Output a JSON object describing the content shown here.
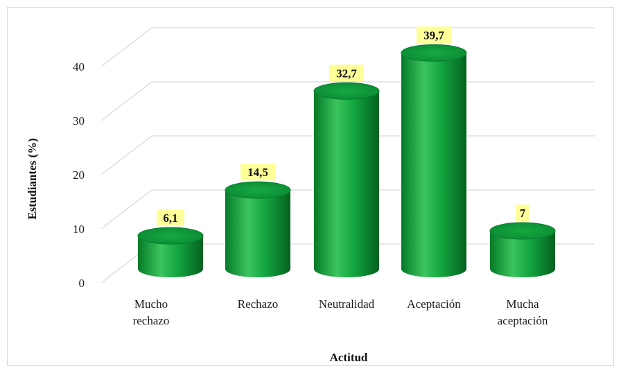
{
  "chart_data": {
    "type": "bar",
    "style": "3d-cylinder",
    "categories": [
      [
        "Mucho",
        "rechazo"
      ],
      [
        "Rechazo"
      ],
      [
        "Neutralidad"
      ],
      [
        "Aceptación"
      ],
      [
        "Mucha",
        "aceptación"
      ]
    ],
    "values": [
      6.1,
      14.5,
      32.7,
      39.7,
      7
    ],
    "value_labels": [
      "6,1",
      "14,5",
      "32,7",
      "39,7",
      "7"
    ],
    "xlabel": "Actitud",
    "ylabel": "Estudiantes (%)",
    "ylim": [
      0,
      40
    ],
    "yticks": [
      0,
      10,
      20,
      30,
      40
    ],
    "grid": true,
    "colors": {
      "bar": "#0f9a3c",
      "bar_dark": "#066b26",
      "bar_light": "#4fd06f",
      "top": "#0b8a33",
      "label_bg": "#ffff99",
      "grid": "#d9d9d9"
    }
  }
}
